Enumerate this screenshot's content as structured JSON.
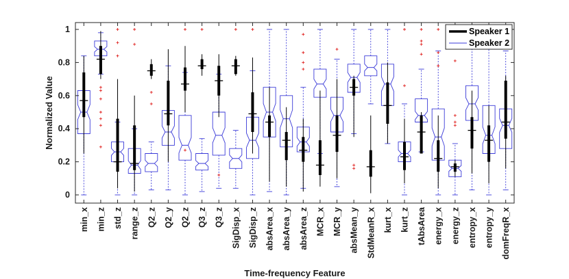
{
  "chart_data": {
    "type": "boxplot",
    "title": "",
    "xlabel": "Time-frequency Feature",
    "ylabel": "Normalized Value",
    "ylim": [
      -0.04,
      1.04
    ],
    "yticks": [
      0,
      0.2,
      0.4,
      0.6,
      0.8,
      1
    ],
    "ytick_labels": [
      "0",
      "0.2",
      "0.4",
      "0.6",
      "0.8",
      "1"
    ],
    "legend_position": "top-right",
    "grid": false,
    "colors": {
      "speaker1": "#000000",
      "speaker2": "#3a3ad8",
      "outlier": "#e0201e",
      "axis": "#262626"
    },
    "categories": [
      "min_x",
      "min_z",
      "std_z",
      "range_z",
      "Q2_z",
      "Q2_y",
      "Q2_z",
      "Q3_z",
      "Q3_z",
      "SigDisp_x",
      "SigDisp_z",
      "absArea_x",
      "absArea_y",
      "absArea_z",
      "MCR_x",
      "MCR_y",
      "absMean_y",
      "StdMeanR_x",
      "kurt_x",
      "kurt_z",
      "tAbsArea",
      "energy_x",
      "energy_z",
      "entropy_x",
      "entropy_y",
      "domFreqR_x"
    ],
    "series": [
      {
        "name": "Speaker 1",
        "style": "thick-line",
        "boxes": [
          {
            "wl": 0.25,
            "q1": 0.47,
            "med": 0.57,
            "q3": 0.74,
            "wh": 0.84,
            "out": []
          },
          {
            "wl": 0.7,
            "q1": 0.73,
            "med": 0.82,
            "q3": 0.9,
            "wh": 0.99,
            "out": [
              0.29,
              0.42,
              0.46,
              0.5,
              0.58,
              0.63,
              0.65
            ]
          },
          {
            "wl": 0.04,
            "q1": 0.14,
            "med": 0.2,
            "q3": 0.46,
            "wh": 0.7,
            "out": []
          },
          {
            "wl": 0.02,
            "q1": 0.15,
            "med": 0.19,
            "q3": 0.42,
            "wh": 0.6,
            "out": []
          },
          {
            "wl": 0.7,
            "q1": 0.72,
            "med": 0.75,
            "q3": 0.79,
            "wh": 0.82,
            "out": [
              0.55,
              0.62
            ]
          },
          {
            "wl": 0.2,
            "q1": 0.42,
            "med": 0.49,
            "q3": 0.69,
            "wh": 0.88,
            "out": []
          },
          {
            "wl": 0.5,
            "q1": 0.63,
            "med": 0.67,
            "q3": 0.77,
            "wh": 0.9,
            "out": []
          },
          {
            "wl": 0.72,
            "q1": 0.76,
            "med": 0.78,
            "q3": 0.82,
            "wh": 0.85,
            "out": []
          },
          {
            "wl": 0.47,
            "q1": 0.6,
            "med": 0.69,
            "q3": 0.78,
            "wh": 0.85,
            "out": []
          },
          {
            "wl": 0.72,
            "q1": 0.73,
            "med": 0.78,
            "q3": 0.82,
            "wh": 0.84,
            "out": []
          },
          {
            "wl": 0.25,
            "q1": 0.38,
            "med": 0.49,
            "q3": 0.62,
            "wh": 0.83,
            "out": []
          },
          {
            "wl": 0.08,
            "q1": 0.35,
            "med": 0.44,
            "q3": 0.48,
            "wh": 0.65,
            "out": []
          },
          {
            "wl": 0.05,
            "q1": 0.21,
            "med": 0.33,
            "q3": 0.38,
            "wh": 0.53,
            "out": []
          },
          {
            "wl": 0.02,
            "q1": 0.2,
            "med": 0.27,
            "q3": 0.35,
            "wh": 0.46,
            "out": []
          },
          {
            "wl": 0.05,
            "q1": 0.12,
            "med": 0.18,
            "q3": 0.33,
            "wh": 0.63,
            "out": []
          },
          {
            "wl": 0.1,
            "q1": 0.26,
            "med": 0.36,
            "q3": 0.48,
            "wh": 0.7,
            "out": []
          },
          {
            "wl": 0.35,
            "q1": 0.6,
            "med": 0.65,
            "q3": 0.7,
            "wh": 0.72,
            "out": []
          },
          {
            "wl": 0.01,
            "q1": 0.11,
            "med": 0.17,
            "q3": 0.27,
            "wh": 0.48,
            "out": []
          },
          {
            "wl": 0.31,
            "q1": 0.43,
            "med": 0.54,
            "q3": 0.68,
            "wh": 0.8,
            "out": []
          },
          {
            "wl": 0.07,
            "q1": 0.15,
            "med": 0.23,
            "q3": 0.32,
            "wh": 0.46,
            "out": []
          },
          {
            "wl": 0.25,
            "q1": 0.25,
            "med": 0.38,
            "q3": 0.48,
            "wh": 0.5,
            "out": []
          },
          {
            "wl": 0.04,
            "q1": 0.14,
            "med": 0.22,
            "q3": 0.33,
            "wh": 0.48,
            "out": []
          },
          {
            "wl": 0.11,
            "q1": 0.14,
            "med": 0.17,
            "q3": 0.19,
            "wh": 0.21,
            "out": []
          },
          {
            "wl": 0.13,
            "q1": 0.28,
            "med": 0.39,
            "q3": 0.47,
            "wh": 0.63,
            "out": []
          },
          {
            "wl": 0.07,
            "q1": 0.2,
            "med": 0.33,
            "q3": 0.42,
            "wh": 0.54,
            "out": []
          },
          {
            "wl": 0.16,
            "q1": 0.34,
            "med": 0.44,
            "q3": 0.69,
            "wh": 0.72,
            "out": []
          }
        ]
      },
      {
        "name": "Speaker 2",
        "style": "notched-box",
        "boxes": [
          {
            "wl": 0.0,
            "q1": 0.37,
            "med": 0.5,
            "q3": 0.63,
            "wh": 0.84,
            "out": []
          },
          {
            "wl": 0.73,
            "q1": 0.84,
            "med": 0.88,
            "q3": 0.93,
            "wh": 0.98,
            "out": []
          },
          {
            "wl": 0.0,
            "q1": 0.2,
            "med": 0.26,
            "q3": 0.32,
            "wh": 0.44,
            "out": [
              0.84,
              0.92,
              1.0
            ]
          },
          {
            "wl": 0.0,
            "q1": 0.13,
            "med": 0.18,
            "q3": 0.28,
            "wh": 0.4,
            "out": [
              0.91,
              1.0
            ]
          },
          {
            "wl": 0.03,
            "q1": 0.14,
            "med": 0.19,
            "q3": 0.25,
            "wh": 0.32,
            "out": []
          },
          {
            "wl": 0.03,
            "q1": 0.3,
            "med": 0.38,
            "q3": 0.51,
            "wh": 0.78,
            "out": []
          },
          {
            "wl": 0.0,
            "q1": 0.21,
            "med": 0.3,
            "q3": 0.48,
            "wh": 0.74,
            "out": [
              0.27,
              1.0
            ]
          },
          {
            "wl": 0.02,
            "q1": 0.15,
            "med": 0.19,
            "q3": 0.25,
            "wh": 0.34,
            "out": [
              1.0
            ]
          },
          {
            "wl": 0.04,
            "q1": 0.24,
            "med": 0.36,
            "q3": 0.5,
            "wh": 0.73,
            "out": [
              0.12
            ]
          },
          {
            "wl": 0.04,
            "q1": 0.16,
            "med": 0.22,
            "q3": 0.28,
            "wh": 0.39,
            "out": [
              1.0
            ]
          },
          {
            "wl": 0.0,
            "q1": 0.22,
            "med": 0.33,
            "q3": 0.47,
            "wh": 0.75,
            "out": [
              1.0
            ]
          },
          {
            "wl": 0.02,
            "q1": 0.35,
            "med": 0.5,
            "q3": 0.65,
            "wh": 1.0,
            "out": []
          },
          {
            "wl": 0.0,
            "q1": 0.29,
            "med": 0.46,
            "q3": 0.6,
            "wh": 1.0,
            "out": []
          },
          {
            "wl": 0.04,
            "q1": 0.26,
            "med": 0.32,
            "q3": 0.41,
            "wh": 0.65,
            "out": [
              0.76,
              0.8,
              0.86,
              0.97
            ]
          },
          {
            "wl": 0.25,
            "q1": 0.59,
            "med": 0.67,
            "q3": 0.76,
            "wh": 1.0,
            "out": []
          },
          {
            "wl": 0.05,
            "q1": 0.38,
            "med": 0.48,
            "q3": 0.59,
            "wh": 0.82,
            "out": [
              0.88
            ]
          },
          {
            "wl": 0.37,
            "q1": 0.62,
            "med": 0.71,
            "q3": 0.79,
            "wh": 1.0,
            "out": [
              0.16,
              0.18
            ]
          },
          {
            "wl": 0.55,
            "q1": 0.72,
            "med": 0.77,
            "q3": 0.84,
            "wh": 1.0,
            "out": []
          },
          {
            "wl": 0.31,
            "q1": 0.54,
            "med": 0.67,
            "q3": 0.79,
            "wh": 1.0,
            "out": []
          },
          {
            "wl": 0.0,
            "q1": 0.2,
            "med": 0.25,
            "q3": 0.32,
            "wh": 0.55,
            "out": [
              0.66,
              1.0
            ]
          },
          {
            "wl": 0.26,
            "q1": 0.44,
            "med": 0.48,
            "q3": 0.58,
            "wh": 0.76,
            "out": [
              0.85,
              0.91,
              0.93,
              1.0
            ]
          },
          {
            "wl": 0.0,
            "q1": 0.21,
            "med": 0.35,
            "q3": 0.52,
            "wh": 0.87,
            "out": [
              0.78,
              0.86,
              1.0
            ]
          },
          {
            "wl": 0.0,
            "q1": 0.11,
            "med": 0.16,
            "q3": 0.21,
            "wh": 0.31,
            "out": [
              0.42,
              0.44,
              0.48,
              0.81
            ]
          },
          {
            "wl": 0.03,
            "q1": 0.45,
            "med": 0.55,
            "q3": 0.66,
            "wh": 1.0,
            "out": []
          },
          {
            "wl": 0.0,
            "q1": 0.25,
            "med": 0.36,
            "q3": 0.54,
            "wh": 0.92,
            "out": []
          },
          {
            "wl": 0.03,
            "q1": 0.28,
            "med": 0.42,
            "q3": 0.52,
            "wh": 0.87,
            "out": [
              0.92
            ]
          }
        ]
      }
    ]
  }
}
